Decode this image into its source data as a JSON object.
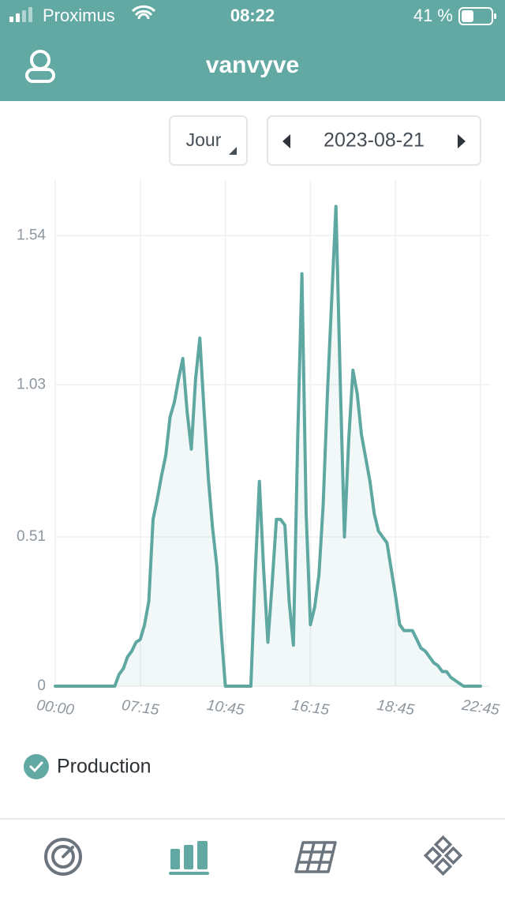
{
  "status_bar": {
    "carrier": "Proximus",
    "time": "08:22",
    "battery": "41 %"
  },
  "header": {
    "title": "vanvyve"
  },
  "controls": {
    "period": "Jour",
    "date": "2023-08-21"
  },
  "chart_data": {
    "type": "area",
    "categories": [
      "00:00",
      null,
      null,
      null,
      null,
      null,
      null,
      null,
      null,
      null,
      null,
      null,
      null,
      null,
      null,
      null,
      null,
      null,
      null,
      null,
      "07:15",
      null,
      null,
      null,
      null,
      null,
      null,
      null,
      null,
      null,
      null,
      null,
      null,
      null,
      null,
      null,
      null,
      null,
      null,
      null,
      "10:45",
      null,
      null,
      null,
      null,
      null,
      null,
      null,
      null,
      null,
      null,
      null,
      null,
      null,
      null,
      null,
      null,
      null,
      null,
      null,
      "16:15",
      null,
      null,
      null,
      null,
      null,
      null,
      null,
      null,
      null,
      null,
      null,
      null,
      null,
      null,
      null,
      null,
      null,
      null,
      null,
      "18:45",
      null,
      null,
      null,
      null,
      null,
      null,
      null,
      null,
      null,
      null,
      null,
      null,
      null,
      null,
      null,
      null,
      null,
      null,
      null,
      "22:45"
    ],
    "series": [
      {
        "name": "Production",
        "color": "#5fa8a2",
        "values": [
          0,
          0,
          0,
          0,
          0,
          0,
          0,
          0,
          0,
          0,
          0,
          0,
          0,
          0,
          0,
          0.04,
          0.06,
          0.1,
          0.12,
          0.15,
          0.16,
          0.21,
          0.29,
          0.57,
          0.64,
          0.72,
          0.79,
          0.92,
          0.97,
          1.05,
          1.12,
          0.94,
          0.81,
          1.05,
          1.19,
          0.94,
          0.71,
          0.54,
          0.41,
          0.19,
          0,
          0,
          0,
          0,
          0,
          0,
          0,
          0.38,
          0.7,
          0.4,
          0.15,
          0.35,
          0.57,
          0.57,
          0.55,
          0.29,
          0.14,
          0.84,
          1.41,
          0.59,
          0.21,
          0.27,
          0.38,
          0.62,
          1,
          1.32,
          1.64,
          1.05,
          0.51,
          0.84,
          1.08,
          1,
          0.86,
          0.78,
          0.7,
          0.59,
          0.53,
          0.51,
          0.49,
          0.4,
          0.31,
          0.21,
          0.19,
          0.19,
          0.19,
          0.16,
          0.13,
          0.12,
          0.1,
          0.08,
          0.07,
          0.05,
          0.05,
          0.03,
          0.02,
          0.01,
          0,
          0,
          0,
          0,
          0
        ]
      }
    ],
    "ylim": [
      0,
      1.73
    ],
    "yticks": [
      0,
      0.51,
      1.03,
      1.54
    ],
    "grid": true
  }
}
